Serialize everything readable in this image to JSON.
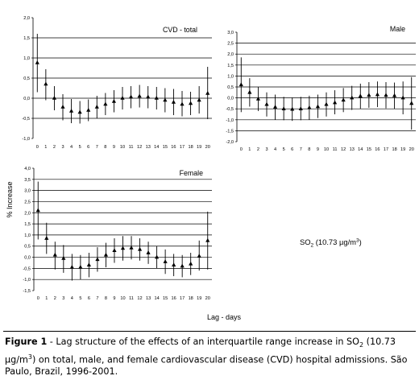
{
  "chart_data": [
    {
      "type": "scatter",
      "subtype": "point-with-error-bars",
      "title": "CVD - total",
      "marker": "triangle",
      "ylim": [
        -1.0,
        2.0
      ],
      "yticks": [
        "-1,0",
        "-0,5",
        "0,0",
        "0,5",
        "1,0",
        "1,5",
        "2,0"
      ],
      "ytick_values": [
        -1.0,
        -0.5,
        0.0,
        0.5,
        1.0,
        1.5,
        2.0
      ],
      "grid": "horizontal",
      "x": [
        0,
        1,
        2,
        3,
        4,
        5,
        6,
        7,
        8,
        9,
        10,
        11,
        12,
        13,
        14,
        15,
        16,
        17,
        18,
        19,
        20
      ],
      "values": [
        0.88,
        0.35,
        0.0,
        -0.22,
        -0.32,
        -0.35,
        -0.3,
        -0.22,
        -0.15,
        -0.08,
        0.0,
        0.03,
        0.05,
        0.03,
        0.0,
        -0.05,
        -0.1,
        -0.15,
        -0.13,
        -0.05,
        0.12
      ],
      "ci_lower": [
        0.15,
        -0.05,
        -0.3,
        -0.55,
        -0.62,
        -0.63,
        -0.57,
        -0.5,
        -0.42,
        -0.35,
        -0.28,
        -0.25,
        -0.23,
        -0.25,
        -0.28,
        -0.35,
        -0.42,
        -0.45,
        -0.42,
        -0.38,
        -0.52
      ],
      "ci_upper": [
        1.6,
        0.72,
        0.3,
        0.1,
        -0.02,
        -0.07,
        -0.03,
        0.06,
        0.13,
        0.2,
        0.28,
        0.3,
        0.33,
        0.3,
        0.28,
        0.25,
        0.23,
        0.18,
        0.16,
        0.3,
        0.78
      ]
    },
    {
      "type": "scatter",
      "subtype": "point-with-error-bars",
      "title": "Male",
      "marker": "triangle",
      "ylim": [
        -2.0,
        3.0
      ],
      "yticks": [
        "-2,0",
        "-1,5",
        "-1,0",
        "-0,5",
        "0,0",
        "0,5",
        "1,0",
        "1,5",
        "2,0",
        "2,5",
        "3,0"
      ],
      "ytick_values": [
        -2.0,
        -1.5,
        -1.0,
        -0.5,
        0.0,
        0.5,
        1.0,
        1.5,
        2.0,
        2.5,
        3.0
      ],
      "grid": "horizontal",
      "x": [
        0,
        1,
        2,
        3,
        4,
        5,
        6,
        7,
        8,
        9,
        10,
        11,
        12,
        13,
        14,
        15,
        16,
        17,
        18,
        19,
        20
      ],
      "values": [
        0.6,
        0.25,
        -0.05,
        -0.3,
        -0.42,
        -0.5,
        -0.52,
        -0.5,
        -0.45,
        -0.4,
        -0.3,
        -0.22,
        -0.1,
        0.0,
        0.08,
        0.12,
        0.15,
        0.12,
        0.1,
        0.0,
        -0.25
      ],
      "ci_lower": [
        -0.65,
        -0.4,
        -0.6,
        -0.85,
        -1.0,
        -1.02,
        -1.05,
        -1.02,
        -1.0,
        -0.92,
        -0.85,
        -0.75,
        -0.65,
        -0.55,
        -0.5,
        -0.45,
        -0.42,
        -0.48,
        -0.5,
        -0.75,
        -1.45
      ],
      "ci_upper": [
        1.85,
        0.9,
        0.5,
        0.25,
        0.15,
        0.05,
        0.02,
        0.05,
        0.1,
        0.15,
        0.25,
        0.35,
        0.45,
        0.55,
        0.65,
        0.72,
        0.75,
        0.72,
        0.7,
        0.75,
        0.95
      ]
    },
    {
      "type": "scatter",
      "subtype": "point-with-error-bars",
      "title": "Female",
      "marker": "triangle",
      "ylim": [
        -1.5,
        4.0
      ],
      "yticks": [
        "-1,5",
        "-1,0",
        "-0,5",
        "0,0",
        "0,5",
        "1,0",
        "1,5",
        "2,0",
        "2,5",
        "3,0",
        "3,5",
        "4,0"
      ],
      "ytick_values": [
        -1.5,
        -1.0,
        -0.5,
        0.0,
        0.5,
        1.0,
        1.5,
        2.0,
        2.5,
        3.0,
        3.5,
        4.0
      ],
      "grid": "horizontal",
      "x": [
        0,
        1,
        2,
        3,
        4,
        5,
        6,
        7,
        8,
        9,
        10,
        11,
        12,
        13,
        14,
        15,
        16,
        17,
        18,
        19,
        20
      ],
      "values": [
        2.1,
        0.85,
        0.1,
        -0.05,
        -0.45,
        -0.45,
        -0.35,
        -0.1,
        0.1,
        0.3,
        0.4,
        0.42,
        0.35,
        0.2,
        0.0,
        -0.2,
        -0.35,
        -0.4,
        -0.3,
        0.05,
        0.75
      ],
      "ci_lower": [
        0.8,
        0.15,
        -0.55,
        -0.7,
        -1.05,
        -1.0,
        -0.9,
        -0.65,
        -0.45,
        -0.25,
        -0.15,
        -0.1,
        -0.15,
        -0.3,
        -0.5,
        -0.75,
        -0.85,
        -0.9,
        -0.8,
        -0.6,
        -0.55
      ],
      "ci_upper": [
        3.4,
        1.55,
        0.7,
        0.55,
        0.15,
        0.1,
        0.2,
        0.45,
        0.65,
        0.85,
        0.95,
        0.95,
        0.85,
        0.7,
        0.5,
        0.35,
        0.15,
        0.1,
        0.2,
        0.75,
        2.05
      ]
    }
  ],
  "figure": {
    "ylabel": "% Increase",
    "xlabel": "Lag - days",
    "pollutant_pre": "SO",
    "pollutant_sub": "2",
    "pollutant_post": " (10.73 µg/m",
    "pollutant_sup": "3",
    "pollutant_end": ")"
  },
  "caption": {
    "label": "Figure 1",
    "p1": " - Lag structure of the effects of an interquartile range increase in SO",
    "sub": "2",
    "p2": " (10.73 µg/m",
    "sup": "3",
    "p3": ") on total, male, and female cardiovascular disease (CVD) hospital admissions. São Paulo, Brazil, 1996-2001."
  }
}
